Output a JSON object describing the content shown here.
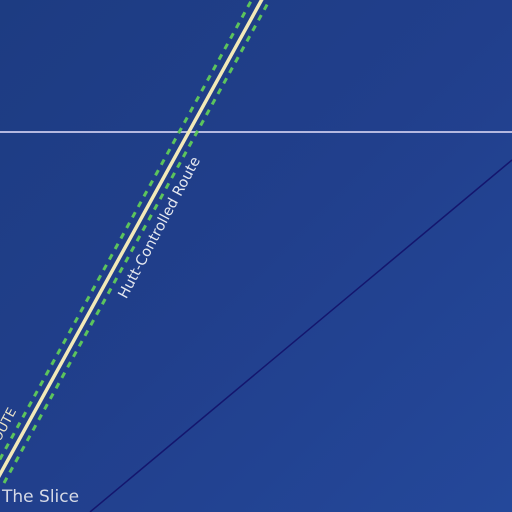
{
  "map": {
    "labels": {
      "route": "Hutt-Controlled Route",
      "route_partial": "OUTE",
      "region": "The Slice"
    },
    "colors": {
      "space": "#1f3e8a",
      "route_line": "#f2e9b8",
      "route_border": "#5cc45c",
      "grid_line": "#b4b8e0",
      "sector_line": "#14166e"
    }
  }
}
